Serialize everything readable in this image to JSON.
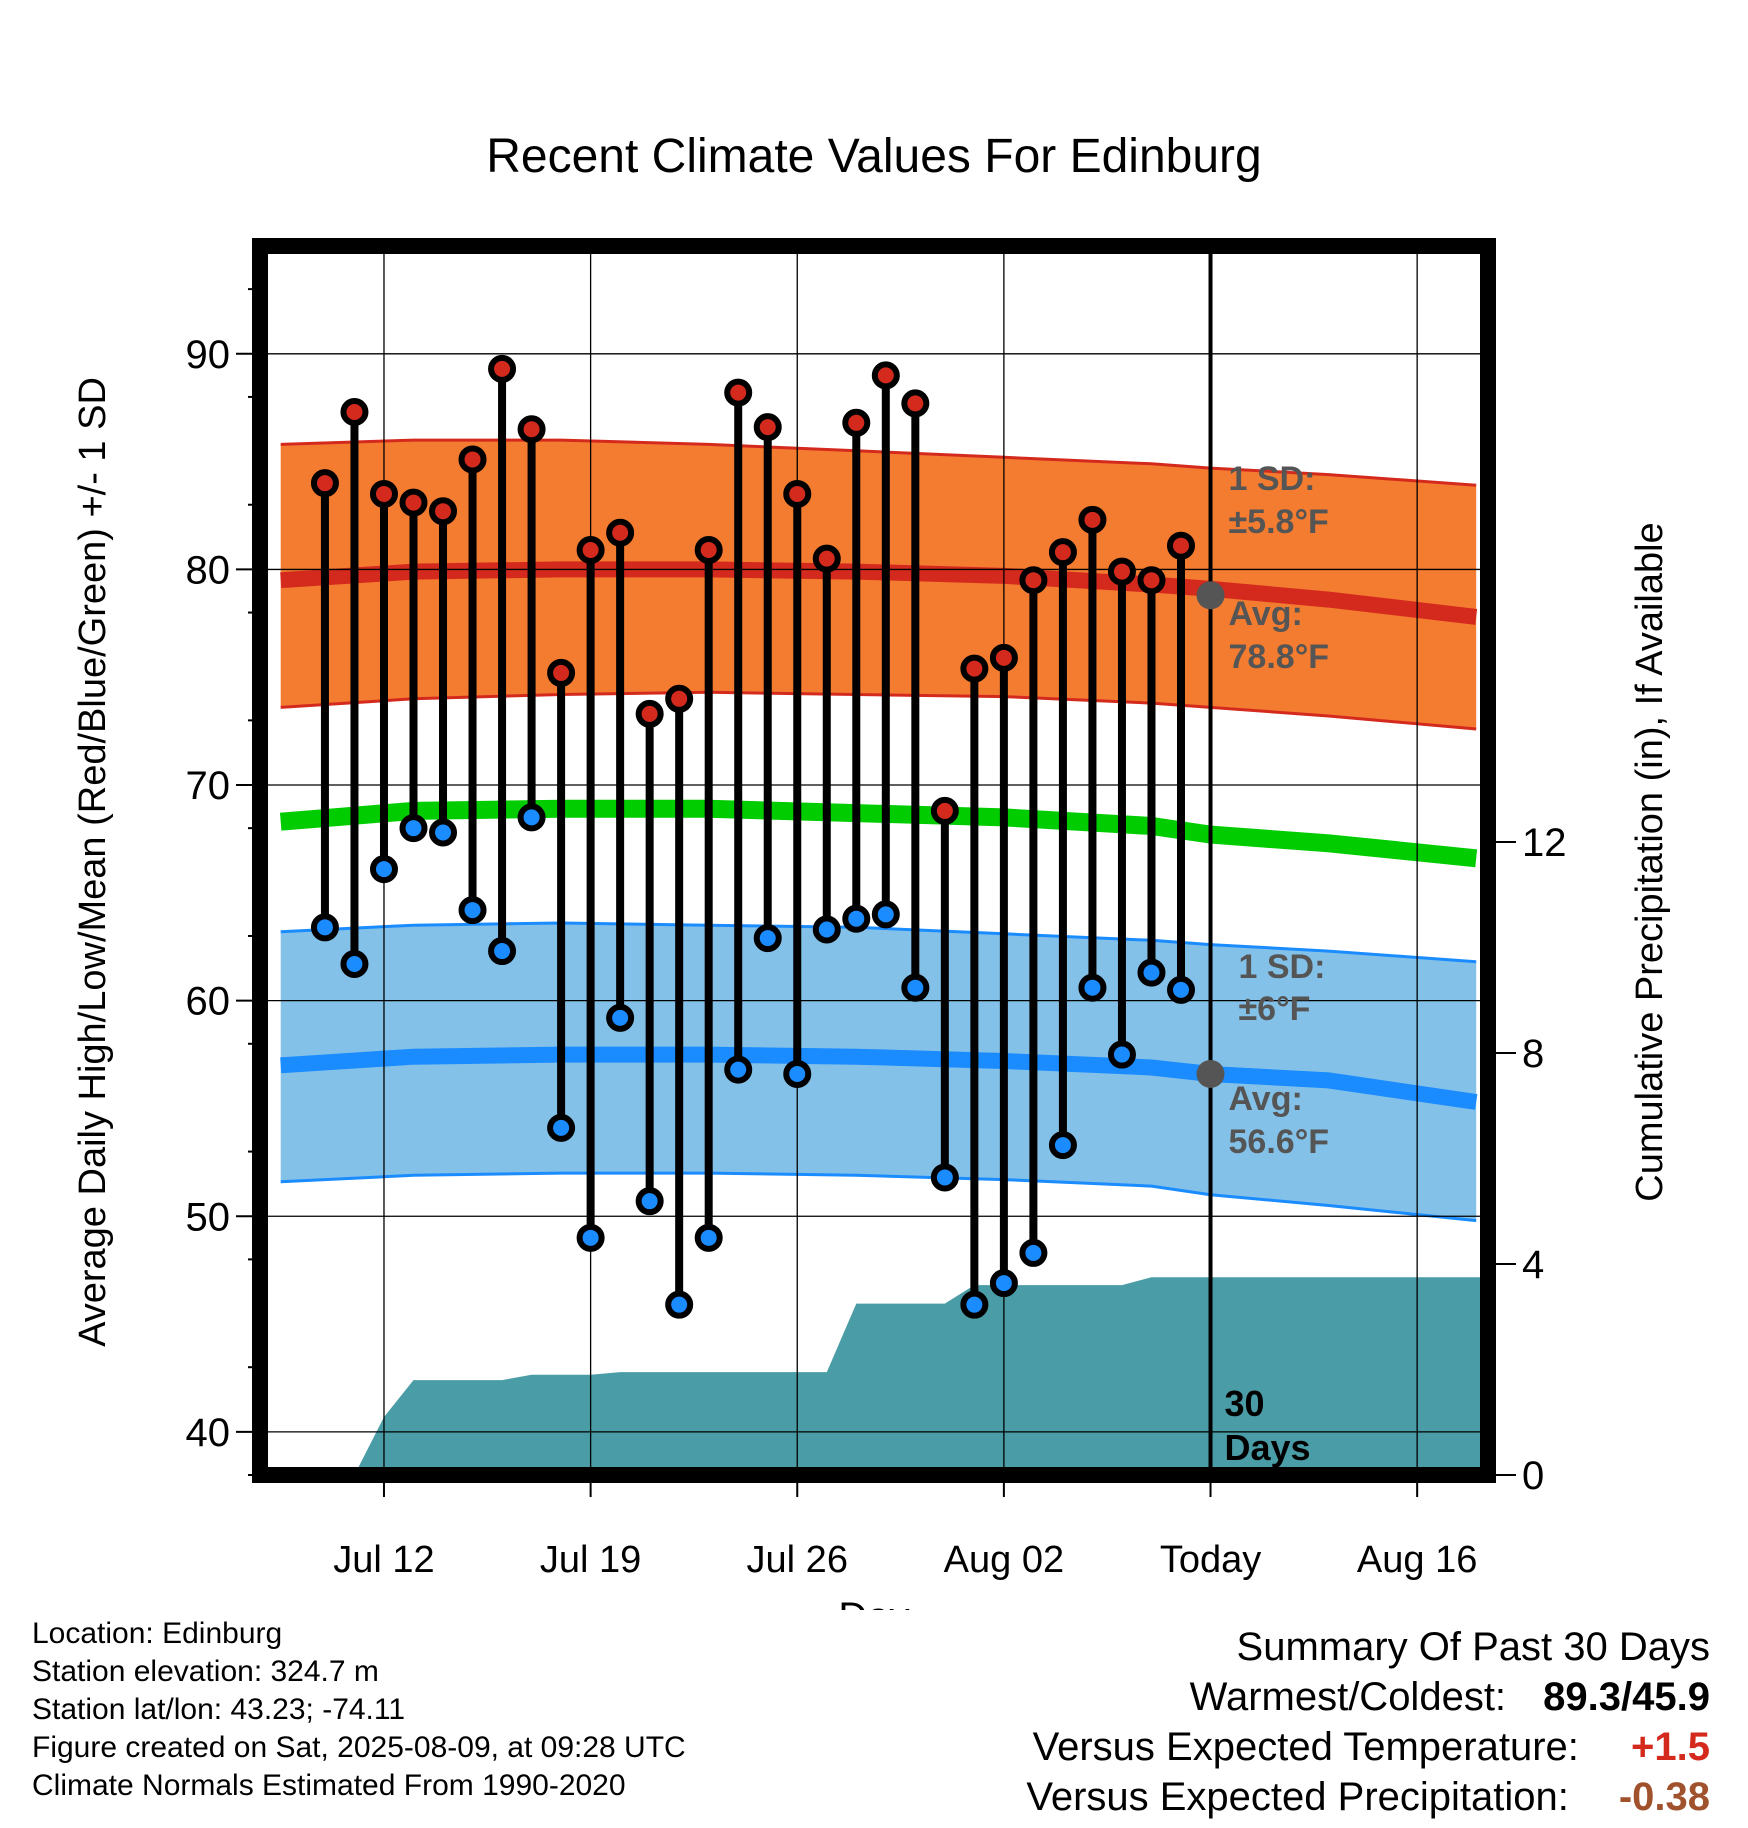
{
  "chart_data": {
    "type": "line",
    "title": "Recent Climate Values For Edinburg",
    "xlabel": "Day",
    "ylabel": "Average Daily High/Low/Mean (Red/Blue/Green) +/- 1 SD",
    "y2label": "Cumulative Precipitation (in), If Available",
    "x_ticks": [
      "Jul 12",
      "Jul 19",
      "Jul 26",
      "Aug 02",
      "Today",
      "Aug 16"
    ],
    "x_range_days": [
      -32.2,
      9.4
    ],
    "ylim": [
      38,
      95
    ],
    "y_ticks": [
      40,
      50,
      60,
      70,
      80,
      90
    ],
    "y2lim": [
      0,
      23.3
    ],
    "y2_ticks": [
      0,
      4,
      8,
      12
    ],
    "grid": true,
    "today_marker_label": [
      "30",
      "Days"
    ],
    "colors": {
      "high_band": "#f47c30",
      "high_band_edge": "#d42a1e",
      "high_avg_line": "#d42a1e",
      "mean_line": "#00cc00",
      "low_band": "#84c1e8",
      "low_band_edge": "#1a8cff",
      "low_avg_line": "#1a8cff",
      "precip_fill": "#4a9ca6",
      "high_marker": "#d42a1e",
      "low_marker": "#1a8cff",
      "annotation": "#555555"
    },
    "normals": {
      "days": [
        -31.5,
        -27,
        -22,
        -17,
        -12,
        -7,
        -2,
        0,
        4,
        9
      ],
      "high_avg": [
        79.5,
        79.9,
        80.0,
        80.0,
        79.9,
        79.7,
        79.3,
        79.1,
        78.6,
        77.8
      ],
      "high_sd_upper": [
        85.8,
        86.0,
        86.0,
        85.8,
        85.5,
        85.2,
        84.9,
        84.7,
        84.4,
        83.9
      ],
      "high_sd_lower": [
        73.6,
        74.0,
        74.2,
        74.3,
        74.2,
        74.1,
        73.8,
        73.6,
        73.2,
        72.6
      ],
      "mean": [
        68.3,
        68.8,
        68.9,
        68.9,
        68.7,
        68.5,
        68.1,
        67.7,
        67.3,
        66.6
      ],
      "low_avg": [
        57.0,
        57.4,
        57.5,
        57.5,
        57.4,
        57.2,
        56.9,
        56.6,
        56.3,
        55.3
      ],
      "low_sd_upper": [
        63.2,
        63.5,
        63.6,
        63.5,
        63.4,
        63.1,
        62.8,
        62.6,
        62.3,
        61.8
      ],
      "low_sd_lower": [
        51.6,
        51.9,
        52.0,
        52.0,
        51.9,
        51.7,
        51.4,
        51.0,
        50.5,
        49.8
      ]
    },
    "annotations": {
      "high_sd": [
        "1 SD:",
        "±5.8°F"
      ],
      "high_avg": [
        "Avg:",
        "78.8°F"
      ],
      "low_sd": [
        "1 SD:",
        "±6°F"
      ],
      "low_avg": [
        "Avg:",
        "56.6°F"
      ],
      "today_high_normal": 78.8,
      "today_low_normal": 56.6
    },
    "observations": {
      "days": [
        -30,
        -29,
        -28,
        -27,
        -26,
        -25,
        -24,
        -23,
        -22,
        -21,
        -20,
        -19,
        -18,
        -17,
        -16,
        -15,
        -14,
        -13,
        -12,
        -11,
        -10,
        -9,
        -8,
        -7,
        -6,
        -5,
        -4,
        -3,
        -2,
        -1
      ],
      "high": [
        84.0,
        87.3,
        83.5,
        83.1,
        82.7,
        85.1,
        89.3,
        86.5,
        75.2,
        80.9,
        81.7,
        73.3,
        74.0,
        80.9,
        88.2,
        86.6,
        83.5,
        80.5,
        86.8,
        89.0,
        87.7,
        68.8,
        75.4,
        75.9,
        79.5,
        80.8,
        82.3,
        79.9,
        79.5,
        81.1
      ],
      "low": [
        63.4,
        61.7,
        66.1,
        68.0,
        67.8,
        64.2,
        62.3,
        68.5,
        54.1,
        49.0,
        59.2,
        50.7,
        45.9,
        49.0,
        56.8,
        62.9,
        56.6,
        63.3,
        63.8,
        64.0,
        60.6,
        51.8,
        45.9,
        46.9,
        48.3,
        53.3,
        60.6,
        57.5,
        61.3,
        60.5
      ]
    },
    "precip_cumulative": {
      "days": [
        -29,
        -28,
        -27,
        -26,
        -25,
        -24,
        -23,
        -22,
        -21,
        -20,
        -19,
        -18,
        -17,
        -16,
        -15,
        -14,
        -13,
        -12,
        -11,
        -10,
        -9,
        -8,
        -7,
        -6,
        -5,
        -4,
        -3,
        -2,
        -1,
        0,
        9.4
      ],
      "values": [
        0.0,
        1.1,
        1.8,
        1.8,
        1.8,
        1.8,
        1.9,
        1.9,
        1.9,
        1.95,
        1.95,
        1.95,
        1.95,
        1.95,
        1.95,
        1.95,
        1.95,
        3.25,
        3.25,
        3.25,
        3.25,
        3.6,
        3.6,
        3.6,
        3.6,
        3.6,
        3.6,
        3.75,
        3.75,
        3.75,
        3.75
      ]
    }
  },
  "info": {
    "location": "Location: Edinburg",
    "elevation": "Station elevation: 324.7 m",
    "latlon": "Station lat/lon: 43.23; -74.11",
    "created": "Figure created on Sat, 2025-08-09, at 09:28 UTC",
    "normals": "Climate Normals Estimated From 1990-2020"
  },
  "summary": {
    "heading": "Summary Of Past 30 Days",
    "warm_cold_label": "Warmest/Coldest:",
    "warm_cold_value": "89.3/45.9",
    "temp_label": "Versus Expected Temperature:",
    "temp_value": "+1.5",
    "temp_color": "#d42a1e",
    "precip_label": "Versus Expected Precipitation:",
    "precip_value": "-0.38",
    "precip_color": "#a0522d"
  }
}
